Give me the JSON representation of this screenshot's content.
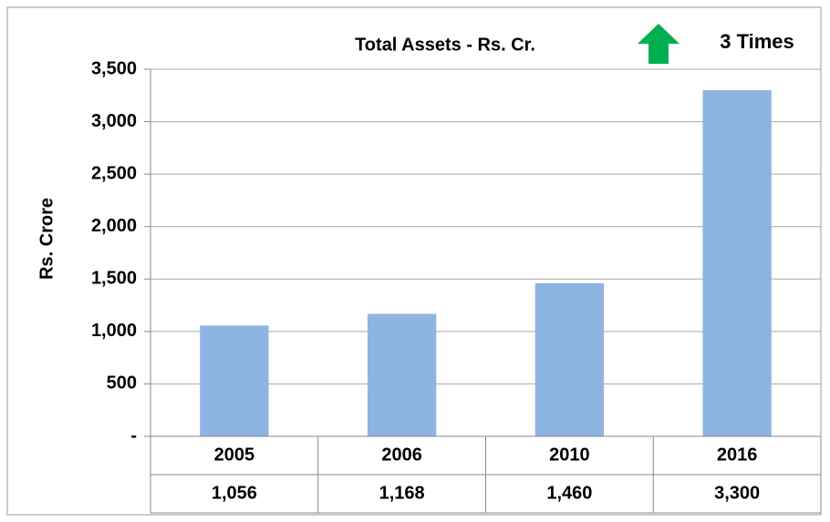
{
  "chart_data": {
    "type": "bar",
    "title": "Total Assets - Rs. Cr.",
    "y_label": "Rs. Crore",
    "annotation": "3 Times",
    "categories": [
      "2005",
      "2006",
      "2010",
      "2016"
    ],
    "values": [
      1056,
      1168,
      1460,
      3300
    ],
    "value_labels": [
      "1,056",
      "1,168",
      "1,460",
      "3,300"
    ],
    "color": "#8eb4e3",
    "annotation_color": "#00b050",
    "ylim": [
      0,
      3500
    ],
    "yticks": [
      {
        "value": 0,
        "label": "-"
      },
      500,
      {
        "value": 1000,
        "label": "1,000"
      },
      {
        "value": 1500,
        "label": "1,500"
      },
      {
        "value": 2000,
        "label": "2,000"
      },
      {
        "value": 2500,
        "label": "2,500"
      },
      {
        "value": 3000,
        "label": "3,000"
      },
      {
        "value": 3500,
        "label": "3,500"
      }
    ],
    "grid": true
  }
}
